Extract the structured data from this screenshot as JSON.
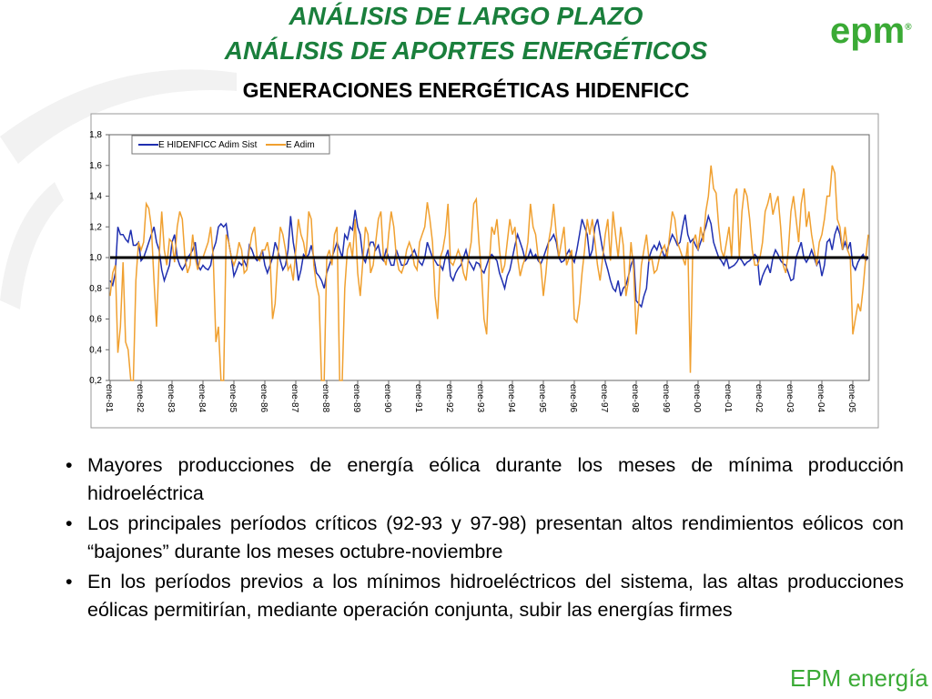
{
  "header": {
    "title_1": "ANÁLISIS DE LARGO PLAZO",
    "title_2": "ANÁLISIS DE APORTES ENERGÉTICOS",
    "title_3": "GENERACIONES ENERGÉTICAS HIDENFICC"
  },
  "logo": {
    "top": "epm",
    "registered": "®",
    "bottom": "EPM energía"
  },
  "bullets": [
    "Mayores producciones de energía eólica durante los meses de mínima producción hidroeléctrica",
    "Los principales períodos críticos (92-93 y 97-98) presentan altos rendimientos eólicos con “bajones” durante los meses octubre-noviembre",
    "En los períodos previos a los mínimos hidroeléctricos del sistema, las altas producciones eólicas permitirían, mediante operación conjunta, subir las energías firmes"
  ],
  "chart_data": {
    "type": "line",
    "categories": [
      "ene-81",
      null,
      null,
      null,
      null,
      null,
      null,
      null,
      null,
      null,
      null,
      null,
      "ene-82",
      null,
      null,
      null,
      null,
      null,
      null,
      null,
      null,
      null,
      null,
      null,
      "ene-83",
      null,
      null,
      null,
      null,
      null,
      null,
      null,
      null,
      null,
      null,
      null,
      "ene-84",
      null,
      null,
      null,
      null,
      null,
      null,
      null,
      null,
      null,
      null,
      null,
      "ene-85",
      null,
      null,
      null,
      null,
      null,
      null,
      null,
      null,
      null,
      null,
      null,
      "ene-86",
      null,
      null,
      null,
      null,
      null,
      null,
      null,
      null,
      null,
      null,
      null,
      "ene-87",
      null,
      null,
      null,
      null,
      null,
      null,
      null,
      null,
      null,
      null,
      null,
      "ene-88",
      null,
      null,
      null,
      null,
      null,
      null,
      null,
      null,
      null,
      null,
      null,
      "ene-89",
      null,
      null,
      null,
      null,
      null,
      null,
      null,
      null,
      null,
      null,
      null,
      "ene-90",
      null,
      null,
      null,
      null,
      null,
      null,
      null,
      null,
      null,
      null,
      null,
      "ene-91",
      null,
      null,
      null,
      null,
      null,
      null,
      null,
      null,
      null,
      null,
      null,
      "ene-92",
      null,
      null,
      null,
      null,
      null,
      null,
      null,
      null,
      null,
      null,
      null,
      "ene-93",
      null,
      null,
      null,
      null,
      null,
      null,
      null,
      null,
      null,
      null,
      null,
      "ene-94",
      null,
      null,
      null,
      null,
      null,
      null,
      null,
      null,
      null,
      null,
      null,
      "ene-95",
      null,
      null,
      null,
      null,
      null,
      null,
      null,
      null,
      null,
      null,
      null,
      "ene-96",
      null,
      null,
      null,
      null,
      null,
      null,
      null,
      null,
      null,
      null,
      null,
      "ene-97",
      null,
      null,
      null,
      null,
      null,
      null,
      null,
      null,
      null,
      null,
      null,
      "ene-98",
      null,
      null,
      null,
      null,
      null,
      null,
      null,
      null,
      null,
      null,
      null,
      "ene-99",
      null,
      null,
      null,
      null,
      null,
      null,
      null,
      null,
      null,
      null,
      null,
      "ene-00",
      null,
      null,
      null,
      null,
      null,
      null,
      null,
      null,
      null,
      null,
      null,
      "ene-01",
      null,
      null,
      null,
      null,
      null,
      null,
      null,
      null,
      null,
      null,
      null,
      "ene-02",
      null,
      null,
      null,
      null,
      null,
      null,
      null,
      null,
      null,
      null,
      null,
      "ene-03",
      null,
      null,
      null,
      null,
      null,
      null,
      null,
      null,
      null,
      null,
      null,
      "ene-04",
      null,
      null,
      null,
      null,
      null,
      null,
      null,
      null,
      null,
      null,
      null,
      "ene-05",
      null,
      null,
      null,
      null,
      null,
      null
    ],
    "series": [
      {
        "name": "E HIDENFICC Adim Sist",
        "color": "#1f2fb0",
        "values": [
          0.85,
          0.82,
          0.9,
          1.2,
          1.15,
          1.15,
          1.12,
          1.1,
          1.18,
          1.08,
          1.08,
          1.1,
          0.98,
          1.0,
          1.05,
          1.1,
          1.15,
          1.2,
          1.1,
          1.05,
          0.92,
          0.85,
          0.9,
          0.95,
          1.1,
          1.15,
          1.0,
          0.95,
          0.92,
          0.95,
          1.0,
          1.02,
          1.05,
          1.1,
          0.95,
          0.92,
          0.95,
          0.93,
          0.92,
          0.95,
          1.05,
          1.1,
          1.2,
          1.22,
          1.2,
          1.22,
          1.1,
          1.0,
          0.88,
          0.92,
          0.97,
          0.95,
          0.98,
          0.94,
          1.08,
          1.05,
          1.0,
          0.98,
          1.0,
          1.05,
          0.95,
          0.9,
          0.95,
          1.0,
          1.1,
          1.05,
          0.98,
          0.92,
          0.95,
          1.05,
          1.27,
          1.1,
          1.0,
          0.85,
          0.92,
          1.02,
          1.0,
          1.02,
          1.08,
          1.0,
          0.9,
          0.88,
          0.85,
          0.8,
          0.9,
          0.95,
          1.0,
          1.05,
          1.1,
          1.05,
          1.0,
          1.15,
          1.12,
          1.2,
          1.18,
          1.31,
          1.2,
          1.15,
          1.0,
          0.97,
          1.05,
          1.1,
          1.1,
          1.05,
          1.08,
          1.0,
          0.98,
          1.05,
          1.0,
          0.95,
          0.95,
          1.05,
          1.0,
          0.95,
          0.95,
          0.96,
          1.0,
          1.02,
          1.05,
          1.0,
          0.97,
          0.95,
          1.0,
          1.1,
          1.05,
          1.0,
          0.98,
          0.95,
          0.95,
          0.92,
          1.0,
          1.05,
          0.88,
          0.85,
          0.9,
          0.93,
          0.95,
          1.0,
          1.05,
          0.98,
          0.95,
          0.92,
          0.97,
          0.96,
          0.92,
          0.9,
          0.95,
          1.0,
          1.02,
          1.0,
          0.98,
          0.9,
          0.85,
          0.8,
          0.88,
          0.92,
          1.0,
          1.08,
          1.15,
          1.1,
          1.05,
          0.98,
          1.0,
          1.05,
          1.0,
          1.02,
          0.98,
          0.96,
          1.0,
          1.05,
          1.1,
          1.12,
          1.15,
          1.1,
          1.0,
          0.97,
          0.98,
          1.02,
          1.05,
          1.0,
          0.97,
          1.05,
          1.15,
          1.25,
          1.2,
          1.15,
          1.0,
          1.05,
          1.2,
          1.25,
          1.15,
          1.05,
          0.98,
          0.92,
          0.85,
          0.8,
          0.78,
          0.85,
          0.75,
          0.8,
          0.82,
          0.88,
          0.95,
          1.0,
          0.72,
          0.7,
          0.68,
          0.75,
          0.8,
          1.0,
          1.05,
          1.08,
          1.05,
          1.1,
          1.05,
          1.0,
          1.05,
          1.1,
          1.15,
          1.12,
          1.08,
          1.1,
          1.2,
          1.28,
          1.15,
          1.1,
          1.12,
          1.08,
          1.05,
          1.1,
          1.15,
          1.2,
          1.27,
          1.22,
          1.1,
          1.05,
          1.0,
          0.98,
          0.95,
          1.0,
          0.93,
          0.94,
          0.95,
          0.97,
          1.0,
          0.98,
          0.95,
          0.97,
          0.98,
          1.0,
          1.02,
          1.0,
          0.82,
          0.88,
          0.92,
          0.95,
          0.9,
          1.0,
          1.05,
          1.02,
          0.98,
          0.96,
          0.95,
          0.9,
          0.85,
          0.86,
          1.0,
          1.05,
          1.1,
          1.0,
          0.97,
          1.0,
          1.05,
          1.0,
          0.95,
          0.98,
          0.88,
          0.95,
          1.1,
          1.12,
          1.05,
          1.15,
          1.2,
          1.15,
          1.05,
          1.1,
          1.05,
          1.1,
          0.95,
          0.92,
          0.97,
          1.0,
          1.02,
          0.98,
          1.0
        ]
      },
      {
        "name": "E Adim",
        "color": "#f0a030",
        "values": [
          0.75,
          0.9,
          0.95,
          0.38,
          0.55,
          0.97,
          0.45,
          0.4,
          0.2,
          0.2,
          0.85,
          1.1,
          1.05,
          1.1,
          1.35,
          1.32,
          1.2,
          0.85,
          0.55,
          1.0,
          1.3,
          1.05,
          0.95,
          1.12,
          1.1,
          0.97,
          1.2,
          1.3,
          1.25,
          1.0,
          0.9,
          0.95,
          1.15,
          1.0,
          0.92,
          1.0,
          1.0,
          1.05,
          1.1,
          1.2,
          1.0,
          0.45,
          0.55,
          0.2,
          0.2,
          1.15,
          1.1,
          1.0,
          0.95,
          1.0,
          1.1,
          1.05,
          0.9,
          0.92,
          1.05,
          1.15,
          1.2,
          1.0,
          0.98,
          1.05,
          1.05,
          1.1,
          1.0,
          0.6,
          0.7,
          1.0,
          1.2,
          1.15,
          1.05,
          0.92,
          0.95,
          0.85,
          1.05,
          1.25,
          1.15,
          1.1,
          1.0,
          1.3,
          1.25,
          0.95,
          0.82,
          0.75,
          0.2,
          0.2,
          1.0,
          1.05,
          0.95,
          1.15,
          1.2,
          0.2,
          0.2,
          0.8,
          1.05,
          1.1,
          1.0,
          1.25,
          0.9,
          0.75,
          0.98,
          1.2,
          1.15,
          0.9,
          0.95,
          1.1,
          1.25,
          1.3,
          1.0,
          0.95,
          1.15,
          1.3,
          1.2,
          1.0,
          0.92,
          0.9,
          0.95,
          1.05,
          1.1,
          1.05,
          0.95,
          0.92,
          1.1,
          1.15,
          1.2,
          1.36,
          1.25,
          1.1,
          0.75,
          0.6,
          1.0,
          1.05,
          1.15,
          1.35,
          0.97,
          0.95,
          1.0,
          1.05,
          1.0,
          0.9,
          0.85,
          1.0,
          1.1,
          1.35,
          1.38,
          1.1,
          0.9,
          0.6,
          0.5,
          0.95,
          1.2,
          1.15,
          1.25,
          1.05,
          0.9,
          0.95,
          1.1,
          1.25,
          1.15,
          1.2,
          1.0,
          0.88,
          0.95,
          1.0,
          1.1,
          1.35,
          1.2,
          1.15,
          1.0,
          0.95,
          0.75,
          0.9,
          1.1,
          1.2,
          1.35,
          1.15,
          1.0,
          1.1,
          1.2,
          0.95,
          1.0,
          1.05,
          0.6,
          0.58,
          0.7,
          0.9,
          1.05,
          1.25,
          1.15,
          1.25,
          1.1,
          0.95,
          0.85,
          1.0,
          1.15,
          1.25,
          0.98,
          1.3,
          1.15,
          1.0,
          1.2,
          1.08,
          0.75,
          0.85,
          1.1,
          0.92,
          0.5,
          0.7,
          0.95,
          1.05,
          1.15,
          0.98,
          1.0,
          0.9,
          0.92,
          1.0,
          1.05,
          1.08,
          1.0,
          1.15,
          1.3,
          1.25,
          1.1,
          1.05,
          1.0,
          0.95,
          1.1,
          0.25,
          1.1,
          1.15,
          1.05,
          1.2,
          1.1,
          1.3,
          1.4,
          1.6,
          1.45,
          1.42,
          1.2,
          1.05,
          1.0,
          1.1,
          1.2,
          1.0,
          1.4,
          1.45,
          1.0,
          1.3,
          1.45,
          1.4,
          1.25,
          1.05,
          0.95,
          0.95,
          1.0,
          1.1,
          1.3,
          1.35,
          1.42,
          1.28,
          1.35,
          1.4,
          1.2,
          0.95,
          0.9,
          1.05,
          1.3,
          1.4,
          1.25,
          1.1,
          1.35,
          1.45,
          1.2,
          1.3,
          1.15,
          1.05,
          0.95,
          1.1,
          1.15,
          1.25,
          1.4,
          1.4,
          1.6,
          1.55,
          1.25,
          1.2,
          1.05,
          1.2,
          1.05,
          1.0,
          0.5,
          0.6,
          0.7,
          0.65,
          0.8,
          1.0,
          1.15
        ]
      }
    ],
    "reference_line": 1.0,
    "reference_color": "#000000",
    "ylim": [
      0.2,
      1.8
    ],
    "yticks": [
      {
        "value": 0.2,
        "label": "0,2"
      },
      {
        "value": 0.4,
        "label": "0,4"
      },
      {
        "value": 0.6,
        "label": "0,6"
      },
      {
        "value": 0.8,
        "label": "0,8"
      },
      {
        "value": 1.0,
        "label": "1,0"
      },
      {
        "value": 1.2,
        "label": "1,2"
      },
      {
        "value": 1.4,
        "label": "1,4"
      },
      {
        "value": 1.6,
        "label": "1,6"
      },
      {
        "value": 1.8,
        "label": "1,8"
      }
    ],
    "grid": false,
    "legend": "top-left"
  }
}
